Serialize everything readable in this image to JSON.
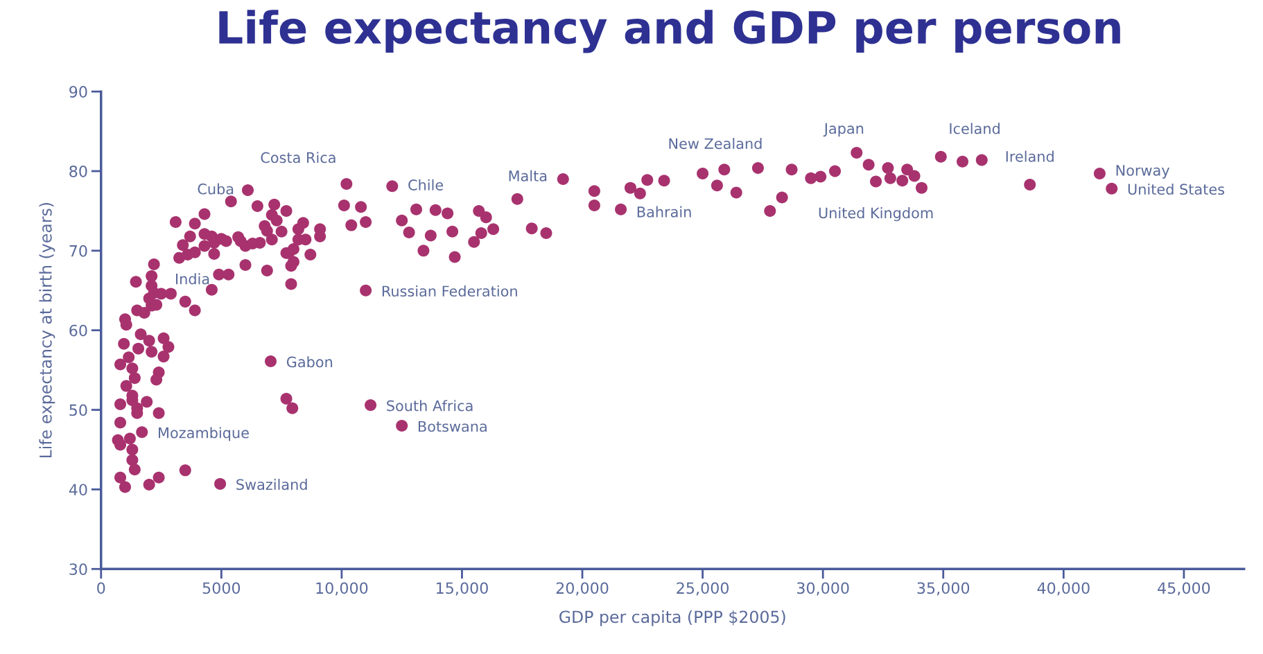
{
  "chart_data": {
    "type": "scatter",
    "title": "Life expectancy and GDP per person",
    "xlabel": "GDP per capita (PPP $2005)",
    "ylabel": "Life expectancy at birth (years)",
    "xlim": [
      0,
      47500
    ],
    "ylim": [
      30,
      90
    ],
    "xticks": [
      0,
      5000,
      {
        "value": 10000,
        "label": "10,000"
      },
      {
        "value": 15000,
        "label": "15,000"
      },
      {
        "value": 20000,
        "label": "20,000"
      },
      {
        "value": 25000,
        "label": "25,000"
      },
      {
        "value": 30000,
        "label": "30,000"
      },
      {
        "value": 35000,
        "label": "35,000"
      },
      {
        "value": 40000,
        "label": "40,000"
      },
      {
        "value": 45000,
        "label": "45,000"
      }
    ],
    "yticks": [
      30,
      40,
      50,
      60,
      70,
      80,
      90
    ],
    "grid": false,
    "marker": "circle",
    "series": [
      {
        "color": "#a8326e",
        "x": [
          1000,
          1050,
          1650,
          950,
          2000,
          2600,
          2800,
          1550,
          2100,
          2600,
          1150,
          800,
          1300,
          1400,
          2400,
          2300,
          1050,
          1300,
          1300,
          1900,
          800,
          1500,
          1500,
          2400,
          800,
          1700,
          700,
          1200,
          800,
          1300,
          1300,
          1400,
          3500,
          800,
          2400,
          1000,
          2000,
          4950,
          1450,
          2100,
          2100,
          2200,
          2000,
          2200,
          2500,
          2900,
          2100,
          2300,
          1500,
          1800,
          3500,
          3900,
          4600,
          4900,
          5300,
          6000,
          6900,
          7900,
          7900,
          8000,
          7700,
          8700,
          3250,
          3600,
          3900,
          3100,
          3400,
          3700,
          3900,
          4300,
          4300,
          4300,
          4600,
          4700,
          4700,
          5000,
          5200,
          5400,
          5700,
          5800,
          6000,
          6100,
          6300,
          6500,
          6600,
          6800,
          6900,
          7100,
          7100,
          7200,
          7300,
          7500,
          7700,
          7800,
          8000,
          8200,
          8200,
          8500,
          8400,
          9100,
          9100,
          10200,
          10100,
          10800,
          10400,
          11000,
          11000,
          11200,
          12500,
          7050,
          7700,
          7950,
          12100,
          12500,
          12800,
          13100,
          13400,
          13700,
          13900,
          14400,
          14600,
          14700,
          15500,
          15700,
          15800,
          16000,
          16300,
          17300,
          17900,
          18500,
          19200,
          20500,
          20500,
          21600,
          22000,
          22400,
          22700,
          23400,
          25000,
          25600,
          25900,
          26400,
          27300,
          27800,
          28300,
          28700,
          29500,
          29900,
          30500,
          31400,
          31900,
          32200,
          32700,
          32800,
          33300,
          33500,
          33800,
          34100,
          34900,
          35800,
          36600,
          38600,
          41500,
          42000
        ],
        "values": [
          61.4,
          60.7,
          59.5,
          58.3,
          58.7,
          59.0,
          57.9,
          57.7,
          57.3,
          56.7,
          56.6,
          55.7,
          55.2,
          54.0,
          54.7,
          53.8,
          53.0,
          51.8,
          51.2,
          51.0,
          50.7,
          50.2,
          49.6,
          49.6,
          48.4,
          47.2,
          46.2,
          46.4,
          45.6,
          45.0,
          43.7,
          42.5,
          42.4,
          41.5,
          41.5,
          40.3,
          40.6,
          40.7,
          66.1,
          66.8,
          65.6,
          68.3,
          64.0,
          64.7,
          64.6,
          64.6,
          63.1,
          63.2,
          62.5,
          62.2,
          63.6,
          62.5,
          65.1,
          67.0,
          67.0,
          68.2,
          67.5,
          65.8,
          68.1,
          68.6,
          69.7,
          69.5,
          69.1,
          69.5,
          69.8,
          73.6,
          70.7,
          71.8,
          73.4,
          74.6,
          72.1,
          70.6,
          71.8,
          71.0,
          69.6,
          71.5,
          71.2,
          76.2,
          71.7,
          71.2,
          70.6,
          77.6,
          70.9,
          75.6,
          71.0,
          73.1,
          72.5,
          71.4,
          74.5,
          75.8,
          73.8,
          72.4,
          75.0,
          69.7,
          70.2,
          72.7,
          71.4,
          71.4,
          73.5,
          72.7,
          71.8,
          78.4,
          75.7,
          75.5,
          73.2,
          73.6,
          65.0,
          50.6,
          48.0,
          56.1,
          51.4,
          50.2,
          78.1,
          73.8,
          72.3,
          75.2,
          70.0,
          71.9,
          75.1,
          74.7,
          72.4,
          69.2,
          71.1,
          75.0,
          72.2,
          74.2,
          72.7,
          76.5,
          72.8,
          72.2,
          79.0,
          77.5,
          75.7,
          75.2,
          77.9,
          77.2,
          78.9,
          78.8,
          79.7,
          78.2,
          80.2,
          77.3,
          80.4,
          75.0,
          76.7,
          80.2,
          79.1,
          79.3,
          80.0,
          82.3,
          80.8,
          78.7,
          80.4,
          79.1,
          78.8,
          80.2,
          79.4,
          77.9,
          81.8,
          81.2,
          81.4,
          78.3,
          79.7,
          77.8
        ]
      }
    ],
    "annotations": [
      {
        "text": "Costa Rica",
        "x": 10200,
        "y": 78.4
      },
      {
        "text": "Cuba",
        "x": 6100,
        "y": 77.6
      },
      {
        "text": "Chile",
        "x": 12100,
        "y": 78.1
      },
      {
        "text": "Malta",
        "x": 19200,
        "y": 79.0
      },
      {
        "text": "New Zealand",
        "x": 27300,
        "y": 80.4
      },
      {
        "text": "Japan",
        "x": 31400,
        "y": 82.3
      },
      {
        "text": "Iceland",
        "x": 34900,
        "y": 81.8
      },
      {
        "text": "Ireland",
        "x": 38600,
        "y": 78.3
      },
      {
        "text": "Norway",
        "x": 41500,
        "y": 79.7
      },
      {
        "text": "United States",
        "x": 42000,
        "y": 77.8
      },
      {
        "text": "United Kingdom",
        "x": 32200,
        "y": 78.7
      },
      {
        "text": "Bahrain",
        "x": 21600,
        "y": 75.2
      },
      {
        "text": "India",
        "x": 2500,
        "y": 64.6
      },
      {
        "text": "Russian Federation",
        "x": 11000,
        "y": 65.0
      },
      {
        "text": "Gabon",
        "x": 7050,
        "y": 56.1
      },
      {
        "text": "South Africa",
        "x": 11200,
        "y": 50.6
      },
      {
        "text": "Botswana",
        "x": 12500,
        "y": 48.0
      },
      {
        "text": "Mozambique",
        "x": 1700,
        "y": 47.2
      },
      {
        "text": "Swaziland",
        "x": 4950,
        "y": 40.7
      }
    ]
  }
}
